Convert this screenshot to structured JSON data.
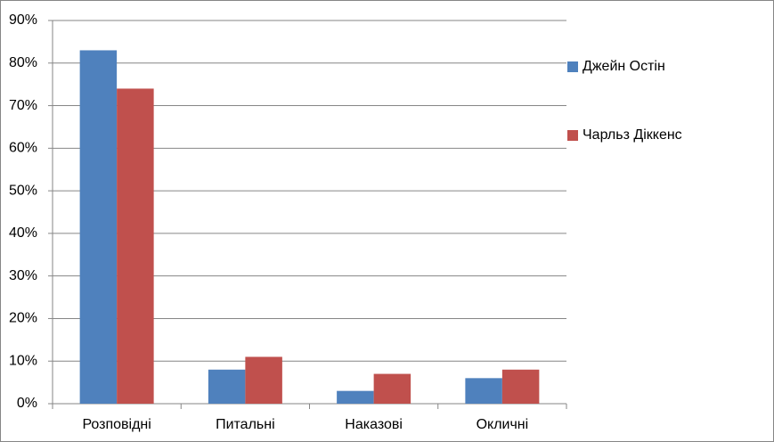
{
  "chart_data": {
    "type": "bar",
    "categories": [
      "Розповідні",
      "Питальні",
      "Наказові",
      "Окличні"
    ],
    "series": [
      {
        "name": "Джейн Остін",
        "color": "#4f81bd",
        "values": [
          83,
          8,
          3,
          6
        ]
      },
      {
        "name": "Чарльз Діккенс",
        "color": "#c0504d",
        "values": [
          74,
          11,
          7,
          8
        ]
      }
    ],
    "ylim": [
      0,
      90
    ],
    "yticks": [
      {
        "value": 0,
        "label": "0%"
      },
      {
        "value": 10,
        "label": "10%"
      },
      {
        "value": 20,
        "label": "20%"
      },
      {
        "value": 30,
        "label": "30%"
      },
      {
        "value": 40,
        "label": "40%"
      },
      {
        "value": 50,
        "label": "50%"
      },
      {
        "value": 60,
        "label": "60%"
      },
      {
        "value": 70,
        "label": "70%"
      },
      {
        "value": 80,
        "label": "80%"
      },
      {
        "value": 90,
        "label": "90%"
      }
    ],
    "grid": true,
    "legend": "right"
  }
}
